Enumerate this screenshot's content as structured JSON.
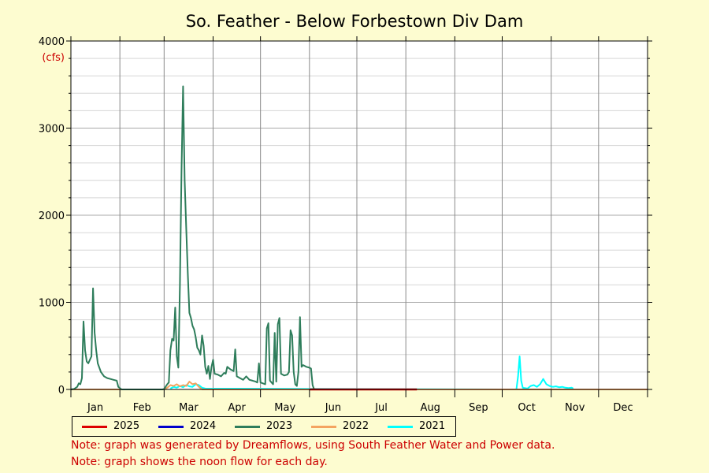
{
  "chart_data": {
    "type": "line",
    "title": "So. Feather - Below Forbestown Div Dam",
    "y_unit_label": "(cfs)",
    "ylim": [
      0,
      4000
    ],
    "y_ticks": [
      0,
      1000,
      2000,
      3000,
      4000
    ],
    "y_tick_labels": [
      "0",
      "1000",
      "2000",
      "3000",
      "4000"
    ],
    "x_domain_days": [
      1,
      366
    ],
    "x_tick_labels": [
      "Jan",
      "Feb",
      "Mar",
      "Apr",
      "May",
      "Jun",
      "Jul",
      "Aug",
      "Sep",
      "Oct",
      "Nov",
      "Dec"
    ],
    "grid": true,
    "legend_placement": "bottom",
    "series": [
      {
        "name": "2025",
        "color": "#dd0000",
        "points": [
          [
            152,
            0
          ],
          [
            220,
            0
          ]
        ]
      },
      {
        "name": "2024",
        "color": "#0000cc",
        "points": []
      },
      {
        "name": "2023",
        "color": "#2e7d5b",
        "points": [
          [
            1,
            0
          ],
          [
            3,
            5
          ],
          [
            5,
            30
          ],
          [
            6,
            70
          ],
          [
            7,
            60
          ],
          [
            8,
            130
          ],
          [
            9,
            780
          ],
          [
            10,
            450
          ],
          [
            11,
            320
          ],
          [
            12,
            300
          ],
          [
            13,
            340
          ],
          [
            14,
            380
          ],
          [
            15,
            1160
          ],
          [
            16,
            650
          ],
          [
            17,
            450
          ],
          [
            18,
            300
          ],
          [
            19,
            250
          ],
          [
            20,
            200
          ],
          [
            22,
            150
          ],
          [
            24,
            130
          ],
          [
            26,
            120
          ],
          [
            28,
            110
          ],
          [
            30,
            100
          ],
          [
            31,
            30
          ],
          [
            33,
            0
          ],
          [
            40,
            0
          ],
          [
            50,
            0
          ],
          [
            59,
            0
          ],
          [
            60,
            5
          ],
          [
            62,
            60
          ],
          [
            63,
            80
          ],
          [
            64,
            450
          ],
          [
            65,
            580
          ],
          [
            66,
            560
          ],
          [
            67,
            940
          ],
          [
            68,
            380
          ],
          [
            69,
            250
          ],
          [
            70,
            1200
          ],
          [
            71,
            2500
          ],
          [
            72,
            3480
          ],
          [
            73,
            2400
          ],
          [
            74,
            1850
          ],
          [
            75,
            1330
          ],
          [
            76,
            880
          ],
          [
            77,
            820
          ],
          [
            78,
            730
          ],
          [
            79,
            690
          ],
          [
            80,
            600
          ],
          [
            81,
            480
          ],
          [
            82,
            450
          ],
          [
            83,
            400
          ],
          [
            84,
            620
          ],
          [
            85,
            500
          ],
          [
            86,
            260
          ],
          [
            87,
            180
          ],
          [
            88,
            270
          ],
          [
            89,
            120
          ],
          [
            90,
            260
          ],
          [
            91,
            340
          ],
          [
            92,
            180
          ],
          [
            94,
            170
          ],
          [
            96,
            150
          ],
          [
            98,
            190
          ],
          [
            99,
            180
          ],
          [
            100,
            260
          ],
          [
            102,
            230
          ],
          [
            104,
            210
          ],
          [
            105,
            460
          ],
          [
            106,
            150
          ],
          [
            108,
            130
          ],
          [
            110,
            110
          ],
          [
            112,
            150
          ],
          [
            114,
            110
          ],
          [
            116,
            100
          ],
          [
            118,
            90
          ],
          [
            119,
            80
          ],
          [
            120,
            300
          ],
          [
            121,
            80
          ],
          [
            124,
            60
          ],
          [
            125,
            700
          ],
          [
            126,
            760
          ],
          [
            127,
            100
          ],
          [
            128,
            80
          ],
          [
            129,
            60
          ],
          [
            130,
            650
          ],
          [
            131,
            90
          ],
          [
            132,
            750
          ],
          [
            133,
            820
          ],
          [
            134,
            180
          ],
          [
            136,
            160
          ],
          [
            138,
            170
          ],
          [
            139,
            200
          ],
          [
            140,
            680
          ],
          [
            141,
            620
          ],
          [
            142,
            200
          ],
          [
            143,
            60
          ],
          [
            144,
            40
          ],
          [
            145,
            200
          ],
          [
            146,
            830
          ],
          [
            147,
            260
          ],
          [
            148,
            280
          ],
          [
            150,
            260
          ],
          [
            152,
            250
          ],
          [
            153,
            240
          ],
          [
            154,
            50
          ],
          [
            155,
            0
          ],
          [
            180,
            0
          ],
          [
            213,
            0
          ]
        ]
      },
      {
        "name": "2022",
        "color": "#f4a460",
        "points": [
          [
            1,
            0
          ],
          [
            60,
            0
          ],
          [
            62,
            20
          ],
          [
            64,
            50
          ],
          [
            66,
            40
          ],
          [
            68,
            60
          ],
          [
            70,
            35
          ],
          [
            72,
            50
          ],
          [
            74,
            40
          ],
          [
            76,
            90
          ],
          [
            78,
            60
          ],
          [
            80,
            70
          ],
          [
            82,
            30
          ],
          [
            84,
            0
          ],
          [
            120,
            0
          ],
          [
            200,
            0
          ],
          [
            280,
            0
          ],
          [
            366,
            0
          ]
        ]
      },
      {
        "name": "2021",
        "color": "#00ffff",
        "points": [
          [
            64,
            10
          ],
          [
            66,
            30
          ],
          [
            68,
            20
          ],
          [
            70,
            40
          ],
          [
            72,
            25
          ],
          [
            74,
            50
          ],
          [
            76,
            35
          ],
          [
            78,
            30
          ],
          [
            80,
            60
          ],
          [
            82,
            50
          ],
          [
            84,
            20
          ],
          [
            86,
            10
          ],
          [
            283,
            0
          ],
          [
            284,
            150
          ],
          [
            285,
            380
          ],
          [
            286,
            100
          ],
          [
            287,
            20
          ],
          [
            290,
            10
          ],
          [
            292,
            40
          ],
          [
            294,
            50
          ],
          [
            296,
            30
          ],
          [
            298,
            60
          ],
          [
            300,
            120
          ],
          [
            301,
            90
          ],
          [
            302,
            60
          ],
          [
            304,
            40
          ],
          [
            306,
            30
          ],
          [
            308,
            35
          ],
          [
            310,
            25
          ],
          [
            312,
            30
          ],
          [
            314,
            20
          ],
          [
            316,
            15
          ],
          [
            318,
            20
          ],
          [
            319,
            10
          ]
        ]
      }
    ]
  },
  "notes": [
    "Note: graph was generated by Dreamflows, using South Feather Water and Power data.",
    "Note: graph shows the noon flow for each day."
  ]
}
